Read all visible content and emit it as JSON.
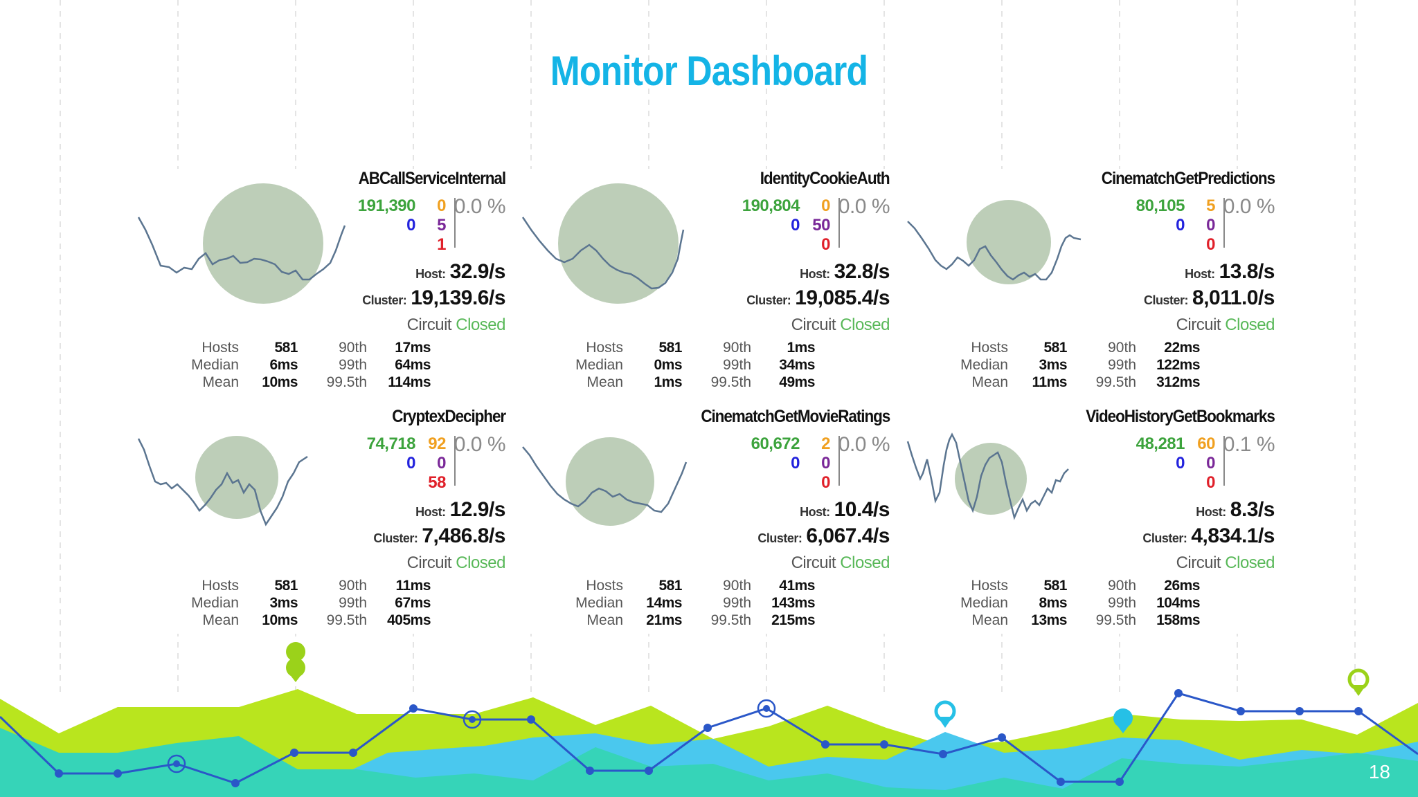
{
  "slide": {
    "title": "Monitor Dashboard",
    "page_number": "18",
    "colors": {
      "title": "#14b4e6",
      "lime": "#b9e51e",
      "teal": "#36d4b8",
      "sky": "#4ac8ee",
      "line": "#2a57c8"
    }
  },
  "dashboard": {
    "circuit_label": "Circuit",
    "circuit_status": "Closed",
    "host_label": "Host:",
    "cluster_label": "Cluster:",
    "stat_labels": {
      "hosts": "Hosts",
      "median": "Median",
      "mean": "Mean",
      "p90": "90th",
      "p99": "99th",
      "p995": "99.5th"
    },
    "commands": [
      {
        "name": "ABCallServiceInternal",
        "success": "191,390",
        "short_circuited": "0",
        "timeout": "0",
        "rejected": "5",
        "failure": "1",
        "error_pct": "0.0 %",
        "host_rate": "32.9/s",
        "cluster_rate": "19,139.6/s",
        "hosts": "581",
        "median": "6ms",
        "mean": "10ms",
        "p90": "17ms",
        "p99": "64ms",
        "p995": "114ms"
      },
      {
        "name": "IdentityCookieAuth",
        "success": "190,804",
        "short_circuited": "0",
        "timeout": "0",
        "rejected": "50",
        "failure": "0",
        "error_pct": "0.0 %",
        "host_rate": "32.8/s",
        "cluster_rate": "19,085.4/s",
        "hosts": "581",
        "median": "0ms",
        "mean": "1ms",
        "p90": "1ms",
        "p99": "34ms",
        "p995": "49ms"
      },
      {
        "name": "CinematchGetPredictions",
        "success": "80,105",
        "short_circuited": "0",
        "timeout": "5",
        "rejected": "0",
        "failure": "0",
        "error_pct": "0.0 %",
        "host_rate": "13.8/s",
        "cluster_rate": "8,011.0/s",
        "hosts": "581",
        "median": "3ms",
        "mean": "11ms",
        "p90": "22ms",
        "p99": "122ms",
        "p995": "312ms"
      },
      {
        "name": "CryptexDecipher",
        "success": "74,718",
        "short_circuited": "0",
        "timeout": "92",
        "rejected": "0",
        "failure": "58",
        "error_pct": "0.0 %",
        "host_rate": "12.9/s",
        "cluster_rate": "7,486.8/s",
        "hosts": "581",
        "median": "3ms",
        "mean": "10ms",
        "p90": "11ms",
        "p99": "67ms",
        "p995": "405ms"
      },
      {
        "name": "CinematchGetMovieRatings",
        "success": "60,672",
        "short_circuited": "0",
        "timeout": "2",
        "rejected": "0",
        "failure": "0",
        "error_pct": "0.0 %",
        "host_rate": "10.4/s",
        "cluster_rate": "6,067.4/s",
        "hosts": "581",
        "median": "14ms",
        "mean": "21ms",
        "p90": "41ms",
        "p99": "143ms",
        "p995": "215ms"
      },
      {
        "name": "VideoHistoryGetBookmarks",
        "success": "48,281",
        "short_circuited": "0",
        "timeout": "60",
        "rejected": "0",
        "failure": "0",
        "error_pct": "0.1 %",
        "host_rate": "8.3/s",
        "cluster_rate": "4,834.1/s",
        "hosts": "581",
        "median": "8ms",
        "mean": "13ms",
        "p90": "26ms",
        "p99": "104ms",
        "p995": "158ms"
      }
    ]
  }
}
